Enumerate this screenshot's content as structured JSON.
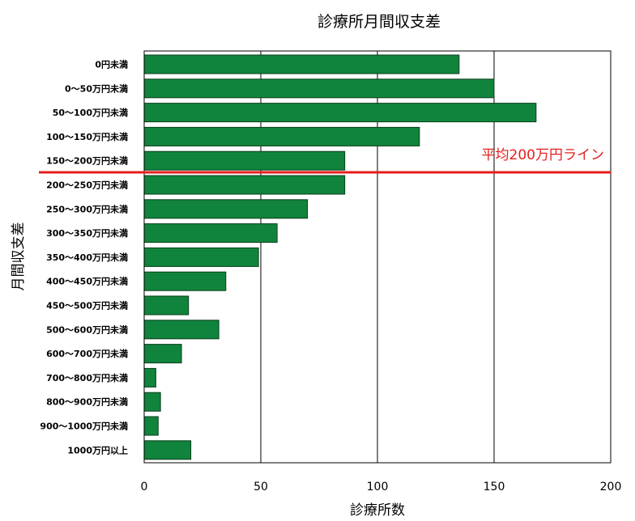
{
  "chart_data": {
    "type": "bar",
    "orientation": "horizontal",
    "title": "診療所月間収支差",
    "xlabel": "診療所数",
    "ylabel": "月間収支差",
    "xlim": [
      0,
      200
    ],
    "xticks": [
      0,
      50,
      100,
      150,
      200
    ],
    "grid": "vertical",
    "categories": [
      "0円未満",
      "0～50万円未満",
      "50～100万円未満",
      "100～150万円未満",
      "150～200万円未満",
      "200～250万円未満",
      "250～300万円未満",
      "300～350万円未満",
      "350～400万円未満",
      "400～450万円未満",
      "450～500万円未満",
      "500～600万円未満",
      "600～700万円未満",
      "700～800万円未満",
      "800～900万円未満",
      "900～1000万円未満",
      "1000万円以上"
    ],
    "values": [
      135,
      150,
      168,
      118,
      86,
      86,
      70,
      57,
      49,
      35,
      19,
      32,
      16,
      5,
      7,
      6,
      20
    ],
    "bar_color": "#10843c",
    "reference_line": {
      "label": "平均200万円ライン",
      "between_categories": [
        "150～200万円未満",
        "200～250万円未満"
      ],
      "color": "#e41e1e"
    }
  }
}
